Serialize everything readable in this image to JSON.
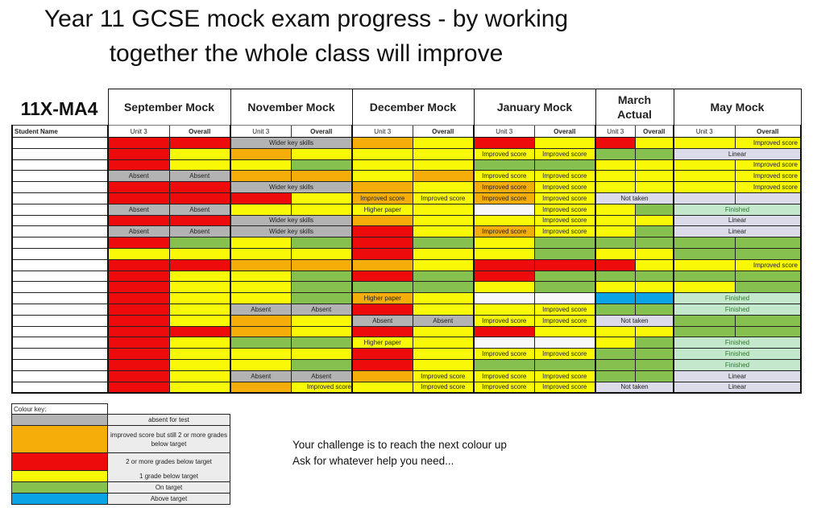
{
  "title": {
    "line1": "Year 11 GCSE mock exam progress - by working",
    "line2": "together the whole class will improve"
  },
  "class_code": "11X-MA4",
  "student_name_header": "Student Name",
  "colors": {
    "R": "#ee0b0b",
    "Y": "#f8f807",
    "G": "#86c04f",
    "O": "#f5ad09",
    "A": "#b3b3b3",
    "B": "#0ba3e4",
    "W": "#f8f8f8",
    "L": "#dcdbe9",
    "F": "#c4e8cb"
  },
  "mocks": [
    {
      "label": "September Mock",
      "sub": [
        "Unit 3",
        "Overall"
      ]
    },
    {
      "label": "November Mock",
      "sub": [
        "Unit 3",
        "Overall"
      ]
    },
    {
      "label": "December Mock",
      "sub": [
        "Unit 3",
        "Overall"
      ]
    },
    {
      "label": "January Mock",
      "sub": [
        "Unit 3",
        "Overall"
      ]
    },
    {
      "label": "March Actual",
      "sub": [
        "Unit 3",
        "Overall"
      ]
    },
    {
      "label": "May Mock",
      "sub": [
        "Unit 3",
        "Overall"
      ]
    }
  ],
  "rows": [
    {
      "name": "",
      "cells": [
        [
          "R",
          ""
        ],
        [
          "R",
          ""
        ],
        [
          "A",
          "Wider key skills",
          2
        ],
        [
          "O",
          ""
        ],
        [
          "Y",
          ""
        ],
        [
          "R",
          ""
        ],
        [
          "Y",
          ""
        ],
        [
          "R",
          ""
        ],
        [
          "Y",
          ""
        ],
        [
          "Y",
          ""
        ],
        [
          "Y",
          "Improved score"
        ]
      ]
    },
    {
      "name": "",
      "cells": [
        [
          "R",
          ""
        ],
        [
          "Y",
          ""
        ],
        [
          "O",
          ""
        ],
        [
          "Y",
          ""
        ],
        [
          "Y",
          ""
        ],
        [
          "Y",
          ""
        ],
        [
          "Y",
          "Improved score"
        ],
        [
          "Y",
          "Improved score"
        ],
        [
          "G",
          ""
        ],
        [
          "G",
          ""
        ],
        [
          "L",
          "Linear",
          2
        ]
      ]
    },
    {
      "name": "",
      "cells": [
        [
          "R",
          ""
        ],
        [
          "Y",
          ""
        ],
        [
          "Y",
          ""
        ],
        [
          "G",
          ""
        ],
        [
          "Y",
          ""
        ],
        [
          "Y",
          ""
        ],
        [
          "G",
          ""
        ],
        [
          "G",
          ""
        ],
        [
          "Y",
          ""
        ],
        [
          "Y",
          ""
        ],
        [
          "Y",
          ""
        ],
        [
          "Y",
          "Improved score"
        ]
      ]
    },
    {
      "name": "",
      "cells": [
        [
          "A",
          "Absent"
        ],
        [
          "A",
          "Absent"
        ],
        [
          "O",
          ""
        ],
        [
          "O",
          ""
        ],
        [
          "Y",
          ""
        ],
        [
          "O",
          ""
        ],
        [
          "Y",
          "Improved score"
        ],
        [
          "Y",
          "Improved score"
        ],
        [
          "Y",
          ""
        ],
        [
          "Y",
          ""
        ],
        [
          "Y",
          ""
        ],
        [
          "Y",
          "Improved score"
        ]
      ]
    },
    {
      "name": "",
      "cells": [
        [
          "R",
          ""
        ],
        [
          "R",
          ""
        ],
        [
          "A",
          "Wider key skills",
          2
        ],
        [
          "O",
          ""
        ],
        [
          "Y",
          ""
        ],
        [
          "O",
          "Improved score"
        ],
        [
          "Y",
          "Improved score"
        ],
        [
          "Y",
          ""
        ],
        [
          "Y",
          ""
        ],
        [
          "Y",
          ""
        ],
        [
          "Y",
          "Improved score"
        ]
      ]
    },
    {
      "name": "",
      "cells": [
        [
          "R",
          ""
        ],
        [
          "R",
          ""
        ],
        [
          "R",
          ""
        ],
        [
          "Y",
          ""
        ],
        [
          "O",
          "Improved score"
        ],
        [
          "Y",
          "Improved score"
        ],
        [
          "O",
          "Improved score"
        ],
        [
          "Y",
          "Improved score"
        ],
        [
          "L",
          "Not taken",
          2
        ],
        [
          "L",
          ""
        ],
        [
          "L",
          ""
        ]
      ]
    },
    {
      "name": "",
      "cells": [
        [
          "A",
          "Absent"
        ],
        [
          "A",
          "Absent"
        ],
        [
          "Y",
          ""
        ],
        [
          "Y",
          ""
        ],
        [
          "Y",
          "Higher paper"
        ],
        [
          "Y",
          ""
        ],
        [
          "W",
          ""
        ],
        [
          "Y",
          "Improved score"
        ],
        [
          "Y",
          ""
        ],
        [
          "G",
          ""
        ],
        [
          "F",
          "Finished",
          2
        ]
      ]
    },
    {
      "name": "",
      "cells": [
        [
          "R",
          ""
        ],
        [
          "R",
          ""
        ],
        [
          "A",
          "Wider key skills",
          2
        ],
        [
          "O",
          ""
        ],
        [
          "Y",
          ""
        ],
        [
          "Y",
          ""
        ],
        [
          "Y",
          "Improved score"
        ],
        [
          "Y",
          ""
        ],
        [
          "Y",
          ""
        ],
        [
          "L",
          "Linear",
          2
        ]
      ]
    },
    {
      "name": "",
      "cells": [
        [
          "A",
          "Absent"
        ],
        [
          "A",
          "Absent"
        ],
        [
          "A",
          "Wider key skills",
          2
        ],
        [
          "R",
          ""
        ],
        [
          "Y",
          ""
        ],
        [
          "O",
          "Improved score"
        ],
        [
          "Y",
          "Improved score"
        ],
        [
          "Y",
          ""
        ],
        [
          "G",
          ""
        ],
        [
          "L",
          "Linear",
          2
        ]
      ]
    },
    {
      "name": "",
      "cells": [
        [
          "R",
          ""
        ],
        [
          "G",
          ""
        ],
        [
          "Y",
          ""
        ],
        [
          "G",
          ""
        ],
        [
          "R",
          ""
        ],
        [
          "G",
          ""
        ],
        [
          "Y",
          ""
        ],
        [
          "G",
          ""
        ],
        [
          "G",
          ""
        ],
        [
          "G",
          ""
        ],
        [
          "G",
          ""
        ],
        [
          "G",
          ""
        ]
      ]
    },
    {
      "name": "",
      "cells": [
        [
          "Y",
          ""
        ],
        [
          "Y",
          ""
        ],
        [
          "Y",
          ""
        ],
        [
          "Y",
          ""
        ],
        [
          "R",
          ""
        ],
        [
          "Y",
          ""
        ],
        [
          "Y",
          ""
        ],
        [
          "G",
          ""
        ],
        [
          "Y",
          ""
        ],
        [
          "Y",
          ""
        ],
        [
          "G",
          ""
        ],
        [
          "G",
          ""
        ]
      ]
    },
    {
      "name": "",
      "cells": [
        [
          "R",
          ""
        ],
        [
          "R",
          ""
        ],
        [
          "O",
          ""
        ],
        [
          "O",
          ""
        ],
        [
          "O",
          ""
        ],
        [
          "Y",
          ""
        ],
        [
          "R",
          ""
        ],
        [
          "R",
          ""
        ],
        [
          "R",
          ""
        ],
        [
          "Y",
          ""
        ],
        [
          "Y",
          ""
        ],
        [
          "Y",
          "Improved score"
        ]
      ]
    },
    {
      "name": "",
      "cells": [
        [
          "R",
          ""
        ],
        [
          "Y",
          ""
        ],
        [
          "Y",
          ""
        ],
        [
          "G",
          ""
        ],
        [
          "R",
          ""
        ],
        [
          "G",
          ""
        ],
        [
          "R",
          ""
        ],
        [
          "G",
          ""
        ],
        [
          "G",
          ""
        ],
        [
          "G",
          ""
        ],
        [
          "G",
          ""
        ],
        [
          "G",
          ""
        ]
      ]
    },
    {
      "name": "",
      "cells": [
        [
          "R",
          ""
        ],
        [
          "Y",
          ""
        ],
        [
          "Y",
          ""
        ],
        [
          "G",
          ""
        ],
        [
          "G",
          ""
        ],
        [
          "G",
          ""
        ],
        [
          "Y",
          ""
        ],
        [
          "G",
          ""
        ],
        [
          "Y",
          ""
        ],
        [
          "Y",
          ""
        ],
        [
          "Y",
          ""
        ],
        [
          "G",
          ""
        ]
      ]
    },
    {
      "name": "",
      "cells": [
        [
          "R",
          ""
        ],
        [
          "Y",
          ""
        ],
        [
          "Y",
          ""
        ],
        [
          "G",
          ""
        ],
        [
          "O",
          "Higher paper"
        ],
        [
          "Y",
          ""
        ],
        [
          "W",
          ""
        ],
        [
          "W",
          ""
        ],
        [
          "B",
          ""
        ],
        [
          "B",
          ""
        ],
        [
          "F",
          "Finished",
          2
        ]
      ]
    },
    {
      "name": "",
      "cells": [
        [
          "R",
          ""
        ],
        [
          "Y",
          ""
        ],
        [
          "A",
          "Absent"
        ],
        [
          "A",
          "Absent"
        ],
        [
          "R",
          ""
        ],
        [
          "Y",
          ""
        ],
        [
          "Y",
          ""
        ],
        [
          "Y",
          "Improved score"
        ],
        [
          "G",
          ""
        ],
        [
          "G",
          ""
        ],
        [
          "F",
          "Finished",
          2
        ]
      ]
    },
    {
      "name": "",
      "cells": [
        [
          "R",
          ""
        ],
        [
          "Y",
          ""
        ],
        [
          "O",
          ""
        ],
        [
          "Y",
          ""
        ],
        [
          "A",
          "Absent"
        ],
        [
          "A",
          "Absent"
        ],
        [
          "Y",
          "Improved score"
        ],
        [
          "Y",
          "Improved score"
        ],
        [
          "L",
          "Not taken",
          2
        ],
        [
          "G",
          ""
        ],
        [
          "G",
          ""
        ]
      ]
    },
    {
      "name": "",
      "cells": [
        [
          "R",
          ""
        ],
        [
          "R",
          ""
        ],
        [
          "O",
          ""
        ],
        [
          "Y",
          ""
        ],
        [
          "R",
          ""
        ],
        [
          "Y",
          ""
        ],
        [
          "R",
          ""
        ],
        [
          "Y",
          ""
        ],
        [
          "Y",
          ""
        ],
        [
          "Y",
          ""
        ],
        [
          "G",
          ""
        ],
        [
          "G",
          ""
        ]
      ]
    },
    {
      "name": "",
      "cells": [
        [
          "R",
          ""
        ],
        [
          "Y",
          ""
        ],
        [
          "G",
          ""
        ],
        [
          "G",
          ""
        ],
        [
          "Y",
          "Higher paper"
        ],
        [
          "Y",
          ""
        ],
        [
          "W",
          ""
        ],
        [
          "W",
          ""
        ],
        [
          "Y",
          ""
        ],
        [
          "G",
          ""
        ],
        [
          "F",
          "Finished",
          2
        ]
      ]
    },
    {
      "name": "",
      "cells": [
        [
          "R",
          ""
        ],
        [
          "Y",
          ""
        ],
        [
          "Y",
          ""
        ],
        [
          "Y",
          ""
        ],
        [
          "R",
          ""
        ],
        [
          "Y",
          ""
        ],
        [
          "Y",
          "Improved score"
        ],
        [
          "Y",
          "Improved score"
        ],
        [
          "G",
          ""
        ],
        [
          "G",
          ""
        ],
        [
          "F",
          "Finished",
          2
        ]
      ]
    },
    {
      "name": "",
      "cells": [
        [
          "R",
          ""
        ],
        [
          "Y",
          ""
        ],
        [
          "Y",
          ""
        ],
        [
          "G",
          ""
        ],
        [
          "R",
          ""
        ],
        [
          "Y",
          ""
        ],
        [
          "G",
          ""
        ],
        [
          "G",
          ""
        ],
        [
          "G",
          ""
        ],
        [
          "G",
          ""
        ],
        [
          "F",
          "Finished",
          2
        ]
      ]
    },
    {
      "name": "",
      "cells": [
        [
          "R",
          ""
        ],
        [
          "Y",
          ""
        ],
        [
          "A",
          "Absent"
        ],
        [
          "A",
          "Absent"
        ],
        [
          "O",
          ""
        ],
        [
          "Y",
          "Improved score"
        ],
        [
          "Y",
          "Improved score"
        ],
        [
          "Y",
          "Improved score"
        ],
        [
          "G",
          ""
        ],
        [
          "G",
          ""
        ],
        [
          "L",
          "Linear",
          2
        ]
      ]
    },
    {
      "name": "",
      "cells": [
        [
          "R",
          ""
        ],
        [
          "Y",
          ""
        ],
        [
          "O",
          ""
        ],
        [
          "Y",
          "Improved score"
        ],
        [
          "Y",
          ""
        ],
        [
          "Y",
          "Improved score"
        ],
        [
          "Y",
          "Improved score"
        ],
        [
          "Y",
          "Improved score"
        ],
        [
          "L",
          "Not taken",
          2
        ],
        [
          "L",
          "Linear",
          2
        ]
      ]
    }
  ],
  "colour_key": {
    "title": "Colour key:",
    "items": [
      {
        "color": "A",
        "label": "absent for test"
      },
      {
        "color": "O",
        "label": "improved score but still 2 or more grades below target"
      },
      {
        "color": "R",
        "label": "2 or more grades below target"
      },
      {
        "color": "Y",
        "label": "1 grade below target"
      },
      {
        "color": "G",
        "label": "On target"
      },
      {
        "color": "B",
        "label": "Above target"
      }
    ]
  },
  "challenge": {
    "line1": "Your challenge is to reach the next colour up",
    "line2": "Ask for whatever help you need..."
  }
}
